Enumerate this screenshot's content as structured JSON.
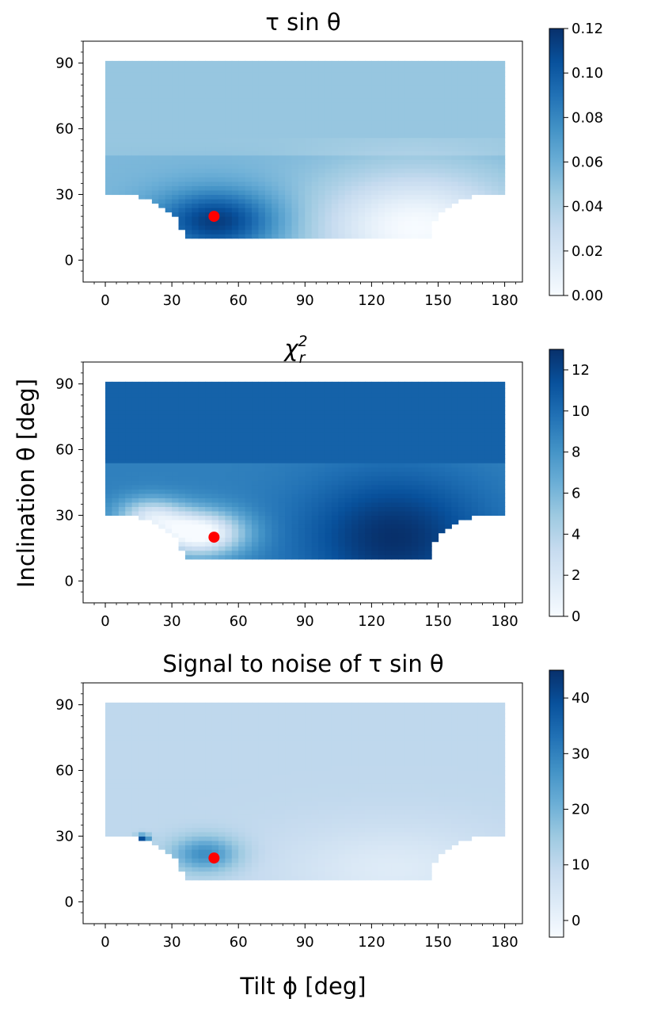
{
  "figure": {
    "xlabel": "Tilt ϕ [deg]",
    "ylabel": "Inclination θ [deg]"
  },
  "chart_data": [
    {
      "type": "heatmap",
      "title": "τ sin θ",
      "colormap": "Blues",
      "xlim": [
        -10,
        188
      ],
      "ylim": [
        -10,
        100
      ],
      "xticks": [
        "0",
        "30",
        "60",
        "90",
        "120",
        "150",
        "180"
      ],
      "yticks": [
        "0",
        "30",
        "60",
        "90"
      ],
      "colorbar": {
        "min": 0.0,
        "max": 0.12,
        "ticks": [
          "0.00",
          "0.02",
          "0.04",
          "0.06",
          "0.08",
          "0.10",
          "0.12"
        ]
      },
      "data_extent": {
        "x": [
          0,
          180
        ],
        "y": [
          10,
          90
        ]
      },
      "field": "tau",
      "best_fit": {
        "x": 49,
        "y": 20,
        "color": "#ff0000"
      }
    },
    {
      "type": "heatmap",
      "title": "χ²ᵣ",
      "title_main": "χ",
      "title_sup": "2",
      "title_sub": "r",
      "colormap": "Blues",
      "xlim": [
        -10,
        188
      ],
      "ylim": [
        -10,
        100
      ],
      "xticks": [
        "0",
        "30",
        "60",
        "90",
        "120",
        "150",
        "180"
      ],
      "yticks": [
        "0",
        "30",
        "60",
        "90"
      ],
      "colorbar": {
        "min": 0,
        "max": 13,
        "ticks": [
          "0",
          "2",
          "4",
          "6",
          "8",
          "10",
          "12"
        ]
      },
      "data_extent": {
        "x": [
          0,
          180
        ],
        "y": [
          10,
          90
        ]
      },
      "field": "chi",
      "best_fit": {
        "x": 49,
        "y": 20,
        "color": "#ff0000"
      }
    },
    {
      "type": "heatmap",
      "title": "Signal to noise of τ sin θ",
      "colormap": "Blues",
      "xlim": [
        -10,
        188
      ],
      "ylim": [
        -10,
        100
      ],
      "xticks": [
        "0",
        "30",
        "60",
        "90",
        "120",
        "150",
        "180"
      ],
      "yticks": [
        "0",
        "30",
        "60",
        "90"
      ],
      "colorbar": {
        "min": -3,
        "max": 45,
        "ticks": [
          "0",
          "10",
          "20",
          "30",
          "40"
        ],
        "tick_values": [
          0,
          10,
          20,
          30,
          40
        ]
      },
      "data_extent": {
        "x": [
          0,
          180
        ],
        "y": [
          10,
          90
        ]
      },
      "field": "snr",
      "best_fit": {
        "x": 49,
        "y": 20,
        "color": "#ff0000"
      }
    }
  ]
}
